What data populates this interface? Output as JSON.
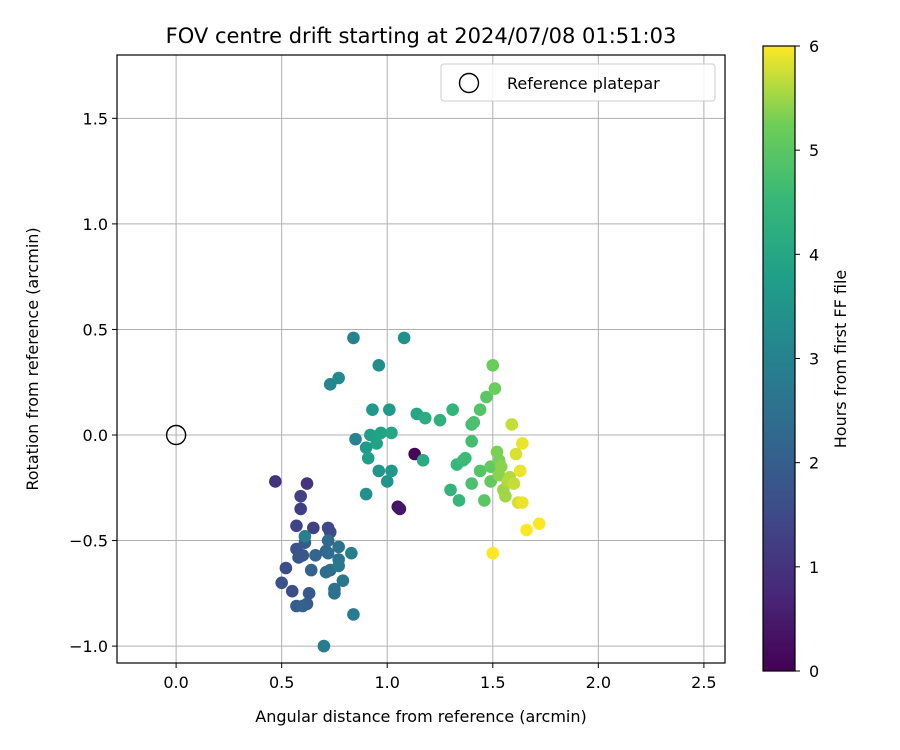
{
  "chart_data": {
    "type": "scatter",
    "title": "FOV centre drift starting at 2024/07/08 01:51:03",
    "xlabel": "Angular distance from reference (arcmin)",
    "ylabel": "Rotation from reference (arcmin)",
    "xlim": [
      -0.28,
      2.6
    ],
    "ylim": [
      -1.08,
      1.8
    ],
    "xticks": [
      0.0,
      0.5,
      1.0,
      1.5,
      2.0,
      2.5
    ],
    "xtick_labels": [
      "0.0",
      "0.5",
      "1.0",
      "1.5",
      "2.0",
      "2.5"
    ],
    "yticks": [
      -1.0,
      -0.5,
      0.0,
      0.5,
      1.0,
      1.5
    ],
    "ytick_labels": [
      "−1.0",
      "−0.5",
      "0.0",
      "0.5",
      "1.0",
      "1.5"
    ],
    "grid": true,
    "legend": {
      "label": "Reference platepar",
      "placement": "top-right"
    },
    "reference": {
      "x": 0.0,
      "y": 0.0
    },
    "colorbar": {
      "label": "Hours from first FF file",
      "colormap": "viridis",
      "range": [
        0,
        6
      ],
      "ticks": [
        0,
        1,
        2,
        3,
        4,
        5,
        6
      ],
      "tick_labels": [
        "0",
        "1",
        "2",
        "3",
        "4",
        "5",
        "6"
      ]
    },
    "points": [
      {
        "x": 1.13,
        "y": -0.09,
        "h": 0.1
      },
      {
        "x": 1.05,
        "y": -0.34,
        "h": 0.3
      },
      {
        "x": 1.06,
        "y": -0.35,
        "h": 0.4
      },
      {
        "x": 0.47,
        "y": -0.22,
        "h": 1.0
      },
      {
        "x": 0.62,
        "y": -0.23,
        "h": 1.0
      },
      {
        "x": 0.59,
        "y": -0.35,
        "h": 1.2
      },
      {
        "x": 0.59,
        "y": -0.29,
        "h": 1.3
      },
      {
        "x": 0.65,
        "y": -0.44,
        "h": 1.3
      },
      {
        "x": 0.57,
        "y": -0.43,
        "h": 1.4
      },
      {
        "x": 0.72,
        "y": -0.44,
        "h": 1.5
      },
      {
        "x": 0.73,
        "y": -0.46,
        "h": 1.5
      },
      {
        "x": 0.55,
        "y": -0.74,
        "h": 1.6
      },
      {
        "x": 0.52,
        "y": -0.63,
        "h": 1.6
      },
      {
        "x": 0.5,
        "y": -0.7,
        "h": 1.7
      },
      {
        "x": 0.57,
        "y": -0.54,
        "h": 1.7
      },
      {
        "x": 0.6,
        "y": -0.57,
        "h": 1.8
      },
      {
        "x": 0.58,
        "y": -0.58,
        "h": 1.8
      },
      {
        "x": 0.61,
        "y": -0.51,
        "h": 1.9
      },
      {
        "x": 0.63,
        "y": -0.75,
        "h": 1.9
      },
      {
        "x": 0.62,
        "y": -0.8,
        "h": 2.0
      },
      {
        "x": 0.57,
        "y": -0.81,
        "h": 2.0
      },
      {
        "x": 0.6,
        "y": -0.81,
        "h": 2.1
      },
      {
        "x": 0.64,
        "y": -0.64,
        "h": 2.1
      },
      {
        "x": 0.66,
        "y": -0.57,
        "h": 2.2
      },
      {
        "x": 0.71,
        "y": -0.55,
        "h": 2.2
      },
      {
        "x": 0.72,
        "y": -0.5,
        "h": 2.3
      },
      {
        "x": 0.72,
        "y": -0.56,
        "h": 2.3
      },
      {
        "x": 0.71,
        "y": -0.65,
        "h": 2.4
      },
      {
        "x": 0.73,
        "y": -0.64,
        "h": 2.4
      },
      {
        "x": 0.75,
        "y": -0.73,
        "h": 2.5
      },
      {
        "x": 0.75,
        "y": -0.75,
        "h": 2.5
      },
      {
        "x": 0.77,
        "y": -0.53,
        "h": 2.6
      },
      {
        "x": 0.77,
        "y": -0.59,
        "h": 2.6
      },
      {
        "x": 0.77,
        "y": -0.62,
        "h": 2.7
      },
      {
        "x": 0.79,
        "y": -0.69,
        "h": 2.7
      },
      {
        "x": 0.7,
        "y": -1.0,
        "h": 2.8
      },
      {
        "x": 0.84,
        "y": -0.85,
        "h": 2.8
      },
      {
        "x": 0.83,
        "y": -0.56,
        "h": 2.9
      },
      {
        "x": 0.61,
        "y": -0.48,
        "h": 2.9
      },
      {
        "x": 0.84,
        "y": 0.46,
        "h": 3.0
      },
      {
        "x": 0.85,
        "y": -0.02,
        "h": 3.0
      },
      {
        "x": 0.73,
        "y": 0.24,
        "h": 3.1
      },
      {
        "x": 0.77,
        "y": 0.27,
        "h": 3.2
      },
      {
        "x": 0.96,
        "y": 0.33,
        "h": 3.3
      },
      {
        "x": 1.08,
        "y": 0.46,
        "h": 3.4
      },
      {
        "x": 0.9,
        "y": -0.28,
        "h": 3.4
      },
      {
        "x": 0.96,
        "y": -0.17,
        "h": 3.5
      },
      {
        "x": 1.0,
        "y": -0.22,
        "h": 3.5
      },
      {
        "x": 1.02,
        "y": -0.17,
        "h": 3.6
      },
      {
        "x": 0.93,
        "y": 0.12,
        "h": 3.6
      },
      {
        "x": 1.01,
        "y": 0.12,
        "h": 3.7
      },
      {
        "x": 0.9,
        "y": -0.06,
        "h": 3.7
      },
      {
        "x": 0.91,
        "y": -0.11,
        "h": 3.8
      },
      {
        "x": 0.92,
        "y": 0.0,
        "h": 3.8
      },
      {
        "x": 0.95,
        "y": -0.04,
        "h": 3.9
      },
      {
        "x": 0.97,
        "y": 0.01,
        "h": 3.9
      },
      {
        "x": 1.02,
        "y": 0.01,
        "h": 4.0
      },
      {
        "x": 1.14,
        "y": 0.1,
        "h": 4.0
      },
      {
        "x": 1.17,
        "y": -0.12,
        "h": 4.1
      },
      {
        "x": 1.18,
        "y": 0.08,
        "h": 4.2
      },
      {
        "x": 1.25,
        "y": 0.07,
        "h": 4.3
      },
      {
        "x": 1.31,
        "y": 0.12,
        "h": 4.4
      },
      {
        "x": 1.3,
        "y": -0.26,
        "h": 4.4
      },
      {
        "x": 1.34,
        "y": -0.31,
        "h": 4.5
      },
      {
        "x": 1.33,
        "y": -0.14,
        "h": 4.5
      },
      {
        "x": 1.36,
        "y": -0.12,
        "h": 4.6
      },
      {
        "x": 1.37,
        "y": -0.11,
        "h": 4.6
      },
      {
        "x": 1.4,
        "y": -0.03,
        "h": 4.7
      },
      {
        "x": 1.4,
        "y": 0.05,
        "h": 4.7
      },
      {
        "x": 1.4,
        "y": -0.23,
        "h": 4.8
      },
      {
        "x": 1.41,
        "y": 0.06,
        "h": 4.8
      },
      {
        "x": 1.44,
        "y": -0.17,
        "h": 4.9
      },
      {
        "x": 1.44,
        "y": 0.12,
        "h": 4.9
      },
      {
        "x": 1.46,
        "y": -0.31,
        "h": 5.0
      },
      {
        "x": 1.47,
        "y": 0.18,
        "h": 5.0
      },
      {
        "x": 1.49,
        "y": -0.22,
        "h": 5.1
      },
      {
        "x": 1.49,
        "y": -0.15,
        "h": 5.1
      },
      {
        "x": 1.5,
        "y": 0.33,
        "h": 5.2
      },
      {
        "x": 1.51,
        "y": 0.22,
        "h": 5.2
      },
      {
        "x": 1.52,
        "y": -0.08,
        "h": 5.3
      },
      {
        "x": 1.53,
        "y": -0.12,
        "h": 5.3
      },
      {
        "x": 1.53,
        "y": -0.19,
        "h": 5.4
      },
      {
        "x": 1.54,
        "y": -0.15,
        "h": 5.4
      },
      {
        "x": 1.55,
        "y": -0.26,
        "h": 5.5
      },
      {
        "x": 1.56,
        "y": -0.29,
        "h": 5.5
      },
      {
        "x": 1.57,
        "y": -0.22,
        "h": 5.6
      },
      {
        "x": 1.58,
        "y": -0.2,
        "h": 5.6
      },
      {
        "x": 1.59,
        "y": 0.05,
        "h": 5.7
      },
      {
        "x": 1.6,
        "y": -0.23,
        "h": 5.7
      },
      {
        "x": 1.61,
        "y": -0.09,
        "h": 5.8
      },
      {
        "x": 1.62,
        "y": -0.32,
        "h": 5.8
      },
      {
        "x": 1.63,
        "y": -0.17,
        "h": 5.9
      },
      {
        "x": 1.64,
        "y": -0.04,
        "h": 5.9
      },
      {
        "x": 1.64,
        "y": -0.32,
        "h": 5.9
      },
      {
        "x": 1.66,
        "y": -0.45,
        "h": 6.0
      },
      {
        "x": 1.72,
        "y": -0.42,
        "h": 6.0
      },
      {
        "x": 1.5,
        "y": -0.56,
        "h": 6.0
      }
    ]
  }
}
